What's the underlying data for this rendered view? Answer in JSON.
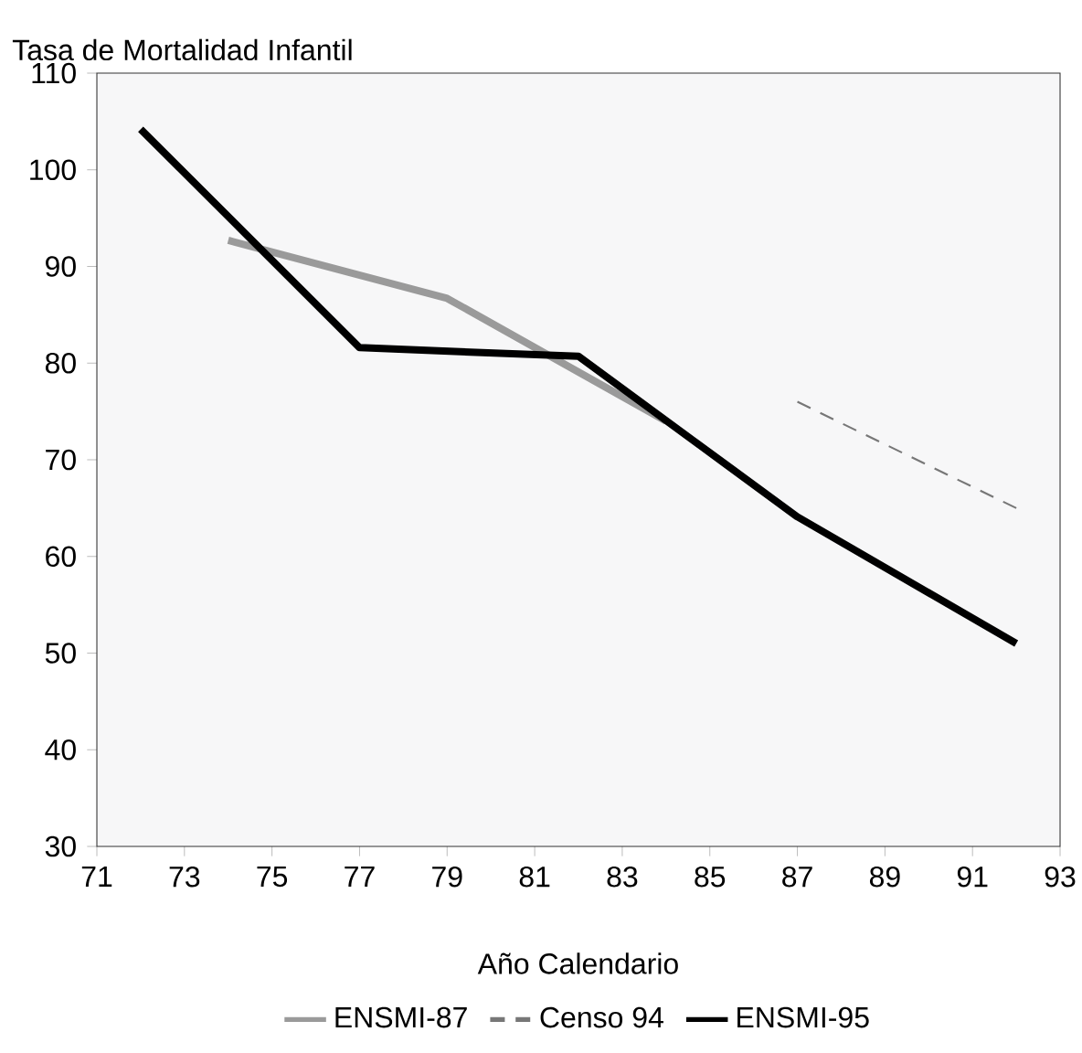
{
  "chart_data": {
    "type": "line",
    "ylabel": "Tasa de Mortalidad Infantil",
    "xlabel": "Año Calendario",
    "xlim": [
      71,
      93
    ],
    "xticks": [
      71,
      73,
      75,
      77,
      79,
      81,
      83,
      85,
      87,
      89,
      91,
      93
    ],
    "ylim": [
      30,
      110
    ],
    "yticks": [
      30,
      40,
      50,
      60,
      70,
      80,
      90,
      100,
      110
    ],
    "legend": "bottom",
    "grid": false,
    "marker": "none",
    "series": [
      {
        "name": "ENSMI-87",
        "color": "#9a9a9a",
        "line_style": "solid",
        "x": [
          74,
          79,
          84
        ],
        "values": [
          92.7,
          86.7,
          74
        ]
      },
      {
        "name": "Censo 94",
        "color": "#777777",
        "line_style": "dashed",
        "x": [
          87,
          92
        ],
        "values": [
          76,
          65
        ]
      },
      {
        "name": "ENSMI-95",
        "color": "#000000",
        "line_style": "solid",
        "x": [
          72,
          77,
          82,
          87,
          92
        ],
        "values": [
          104.2,
          81.6,
          80.7,
          64.1,
          51
        ]
      }
    ]
  }
}
